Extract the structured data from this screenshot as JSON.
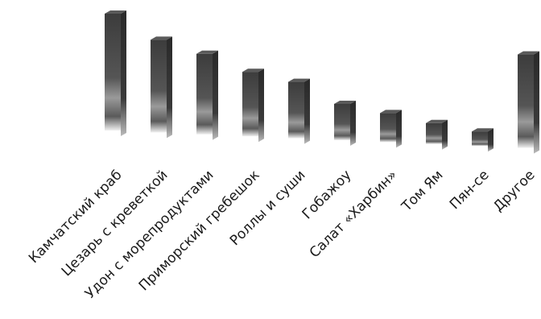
{
  "chart_data": {
    "type": "bar",
    "style": "3d-gradient",
    "categories": [
      "Камчатский краб",
      "Цезарь с креветкой",
      "Удон с морепродуктами",
      "Приморский гребешок",
      "Роллы и суши",
      "Гобажоу",
      "Салат «Харбин»",
      "Том Ям",
      "Пян-се",
      "Другое"
    ],
    "values": [
      145,
      115,
      100,
      80,
      70,
      45,
      36,
      26,
      18,
      116
    ],
    "ylim": [
      0,
      150
    ],
    "grid": false,
    "axes_visible": false,
    "legend": "none",
    "colors": {
      "bar_dark": "#3b3b3b",
      "bar_mid": "#6e6e6e",
      "bar_light": "#e0e0e0",
      "side": "#2a2a2a"
    }
  }
}
